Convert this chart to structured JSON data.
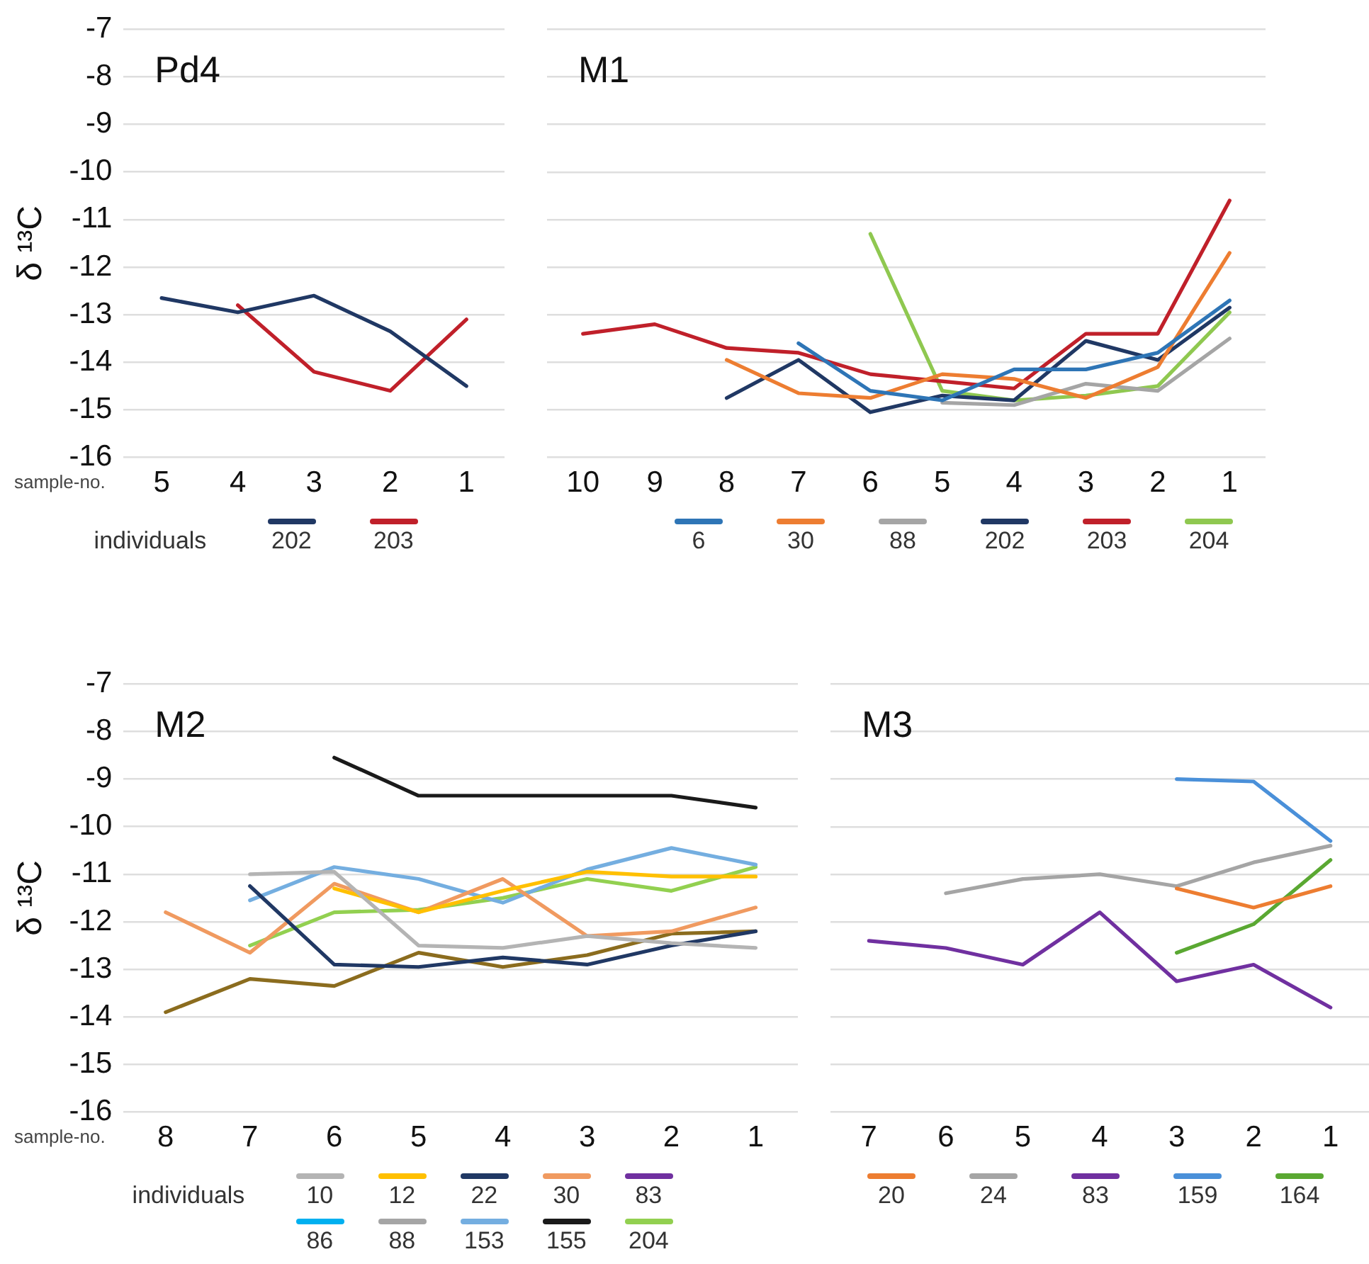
{
  "chart_data": [
    {
      "type": "line",
      "title": "Pd4",
      "ylabel": "δ ¹³C",
      "xlabel": "sample-no.",
      "legend_title": "individuals",
      "categories": [
        "5",
        "4",
        "3",
        "2",
        "1"
      ],
      "ylim": [
        -16,
        -7
      ],
      "yticks": [
        -16,
        -15,
        -14,
        -13,
        -12,
        -11,
        -10,
        -9,
        -8,
        -7
      ],
      "grid": "y",
      "legend": "bottom",
      "marker": "none",
      "series": [
        {
          "name": "202",
          "color": "#203864",
          "values": [
            -12.65,
            -12.95,
            -12.6,
            -13.35,
            -14.5
          ]
        },
        {
          "name": "203",
          "color": "#c0202a",
          "values": [
            null,
            -12.8,
            -14.2,
            -14.6,
            -13.1
          ]
        }
      ]
    },
    {
      "type": "line",
      "title": "M1",
      "categories": [
        "10",
        "9",
        "8",
        "7",
        "6",
        "5",
        "4",
        "3",
        "2",
        "1"
      ],
      "ylim": [
        -16,
        -7
      ],
      "yticks": [
        -16,
        -15,
        -14,
        -13,
        -12,
        -11,
        -10,
        -9,
        -8,
        -7
      ],
      "tick_labels": "x",
      "grid": "y",
      "legend": "bottom",
      "marker": "none",
      "series": [
        {
          "name": "6",
          "color": "#2e75b6",
          "values": [
            null,
            null,
            null,
            -13.6,
            -14.6,
            -14.8,
            -14.15,
            -14.15,
            -13.8,
            -12.7
          ]
        },
        {
          "name": "30",
          "color": "#ed7d31",
          "values": [
            null,
            null,
            -13.95,
            -14.65,
            -14.75,
            -14.25,
            -14.35,
            -14.75,
            -14.1,
            -11.7
          ]
        },
        {
          "name": "88",
          "color": "#a5a5a5",
          "values": [
            null,
            null,
            null,
            null,
            null,
            -14.85,
            -14.9,
            -14.45,
            -14.6,
            -13.5
          ]
        },
        {
          "name": "202",
          "color": "#203864",
          "values": [
            null,
            null,
            -14.75,
            -13.95,
            -15.05,
            -14.7,
            -14.8,
            -13.55,
            -13.95,
            -12.85
          ]
        },
        {
          "name": "203",
          "color": "#c0202a",
          "values": [
            -13.4,
            -13.2,
            -13.7,
            -13.8,
            -14.25,
            -14.4,
            -14.55,
            -13.4,
            -13.4,
            -10.6
          ]
        },
        {
          "name": "204",
          "color": "#8fc850",
          "values": [
            null,
            null,
            null,
            null,
            -11.3,
            -14.6,
            -14.8,
            -14.7,
            -14.5,
            -12.95
          ]
        }
      ]
    },
    {
      "type": "line",
      "title": "M2",
      "ylabel": "δ ¹³C",
      "xlabel": "sample-no.",
      "legend_title": "individuals",
      "categories": [
        "8",
        "7",
        "6",
        "5",
        "4",
        "3",
        "2",
        "1"
      ],
      "ylim": [
        -16,
        -7
      ],
      "yticks": [
        -16,
        -15,
        -14,
        -13,
        -12,
        -11,
        -10,
        -9,
        -8,
        -7
      ],
      "grid": "y",
      "legend": "bottom",
      "marker": "none",
      "series": [
        {
          "name": "10",
          "color": "#b4b4b4",
          "values": [
            null,
            -11.0,
            -10.95,
            -12.5,
            -12.55,
            -12.3,
            -12.45,
            -12.55
          ]
        },
        {
          "name": "12",
          "color": "#ffc000",
          "values": [
            null,
            null,
            -11.3,
            -11.8,
            -11.35,
            -10.95,
            -11.05,
            -11.05
          ]
        },
        {
          "name": "22",
          "color": "#203864",
          "values": [
            null,
            -11.25,
            -12.9,
            -12.95,
            -12.75,
            -12.9,
            -12.5,
            -12.2
          ]
        },
        {
          "name": "30",
          "color": "#f09a60",
          "values": [
            -11.8,
            -12.65,
            -11.2,
            -11.8,
            -11.1,
            -12.3,
            -12.2,
            -11.7
          ]
        },
        {
          "name": "83",
          "color": "#7030a0",
          "values": [
            null,
            null,
            null,
            null,
            null,
            null,
            null,
            null
          ]
        },
        {
          "name": "86",
          "color": "#00b0f0",
          "values": [
            null,
            null,
            null,
            null,
            null,
            null,
            null,
            null
          ]
        },
        {
          "name": "88",
          "color": "#a5a5a5",
          "values": [
            null,
            null,
            null,
            null,
            null,
            null,
            null,
            null
          ]
        },
        {
          "name": "153",
          "color": "#74aee0",
          "values": [
            null,
            -11.55,
            -10.85,
            -11.1,
            -11.6,
            -10.9,
            -10.45,
            -10.8
          ]
        },
        {
          "name": "155",
          "color": "#1a1a1a",
          "values": [
            null,
            null,
            -8.55,
            -9.35,
            -9.35,
            -9.35,
            -9.35,
            -9.6
          ]
        },
        {
          "name": "204",
          "color": "#92d050",
          "values": [
            null,
            -12.5,
            -11.8,
            -11.75,
            -11.5,
            -11.1,
            -11.35,
            -10.85
          ]
        },
        {
          "color": "#8b6c1e",
          "values": [
            -13.9,
            -13.2,
            -13.35,
            -12.65,
            -12.95,
            -12.7,
            -12.25,
            -12.2
          ]
        }
      ]
    },
    {
      "type": "line",
      "title": "M3",
      "categories": [
        "7",
        "6",
        "5",
        "4",
        "3",
        "2",
        "1"
      ],
      "ylim": [
        -16,
        -7
      ],
      "yticks": [
        -16,
        -15,
        -14,
        -13,
        -12,
        -11,
        -10,
        -9,
        -8,
        -7
      ],
      "tick_labels": "x",
      "grid": "y",
      "legend": "bottom",
      "marker": "none",
      "series": [
        {
          "name": "20",
          "color": "#ed7d31",
          "values": [
            null,
            null,
            null,
            null,
            -11.3,
            -11.7,
            -11.25
          ]
        },
        {
          "name": "24",
          "color": "#a5a5a5",
          "values": [
            null,
            -11.4,
            -11.1,
            -11.0,
            -11.25,
            -10.75,
            -10.4
          ]
        },
        {
          "name": "83",
          "color": "#7030a0",
          "values": [
            -12.4,
            -12.55,
            -12.9,
            -11.8,
            -13.25,
            -12.9,
            -13.8
          ]
        },
        {
          "name": "159",
          "color": "#4a90d9",
          "values": [
            null,
            null,
            null,
            null,
            -9.0,
            -9.05,
            -10.3
          ]
        },
        {
          "name": "164",
          "color": "#5aa832",
          "values": [
            null,
            null,
            null,
            null,
            -12.65,
            -12.05,
            -10.7
          ]
        }
      ]
    }
  ]
}
